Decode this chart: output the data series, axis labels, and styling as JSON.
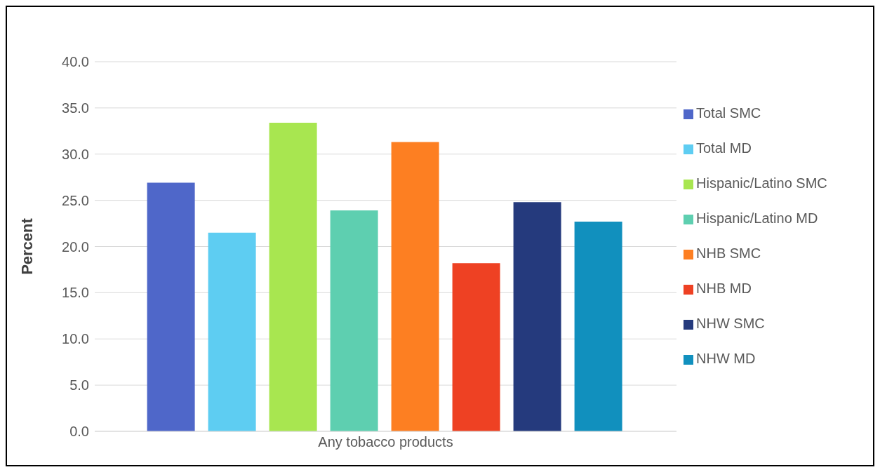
{
  "chart_data": {
    "type": "bar",
    "ylabel": "Percent",
    "categories": [
      "Any tobacco products"
    ],
    "series": [
      {
        "name": "Total SMC",
        "color": "#4f67c9",
        "values": [
          26.9
        ]
      },
      {
        "name": "Total MD",
        "color": "#5ecdf2",
        "values": [
          21.5
        ]
      },
      {
        "name": "Hispanic/Latino SMC",
        "color": "#a8e650",
        "values": [
          33.4
        ]
      },
      {
        "name": "Hispanic/Latino MD",
        "color": "#5ecfb0",
        "values": [
          23.9
        ]
      },
      {
        "name": "NHB SMC",
        "color": "#fd7f22",
        "values": [
          31.3
        ]
      },
      {
        "name": "NHB MD",
        "color": "#ee4123",
        "values": [
          18.2
        ]
      },
      {
        "name": "NHW SMC",
        "color": "#253a7d",
        "values": [
          24.8
        ]
      },
      {
        "name": "NHW MD",
        "color": "#1190be",
        "values": [
          22.7
        ]
      }
    ],
    "ylim": [
      0,
      40
    ],
    "yticks": [
      {
        "value": 0,
        "label": "0.0"
      },
      {
        "value": 5,
        "label": "5.0"
      },
      {
        "value": 10,
        "label": "10.0"
      },
      {
        "value": 15,
        "label": "15.0"
      },
      {
        "value": 20,
        "label": "20.0"
      },
      {
        "value": 25,
        "label": "25.0"
      },
      {
        "value": 30,
        "label": "30.0"
      },
      {
        "value": 35,
        "label": "35.0"
      },
      {
        "value": 40,
        "label": "40.0"
      }
    ],
    "grid": "y",
    "legend": "right"
  }
}
